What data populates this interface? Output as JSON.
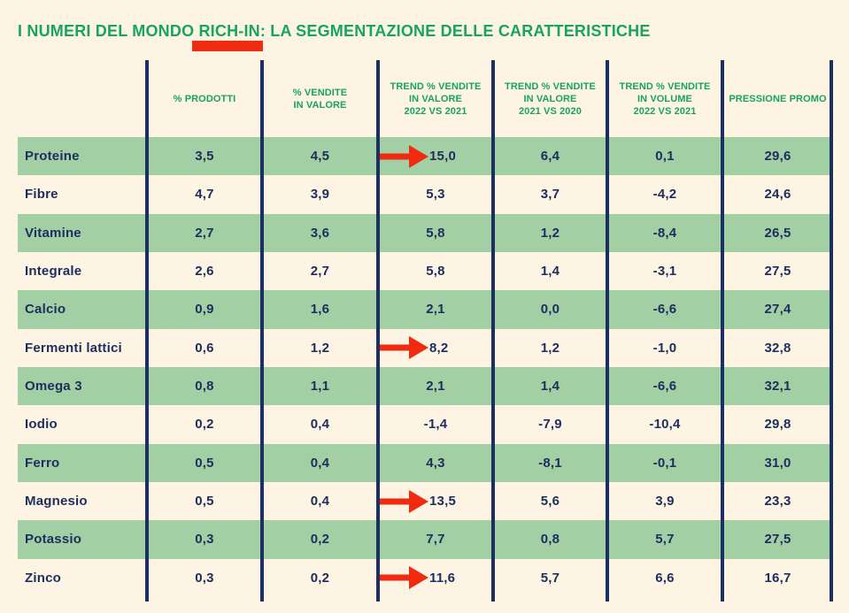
{
  "title": "I NUMERI DEL MONDO RICH-IN: LA SEGMENTAZIONE DELLE CARATTERISTICHE",
  "colors": {
    "background": "#fdf4e3",
    "row_green": "#a2cfa3",
    "navy_text": "#1d2d5f",
    "divider_navy": "#1a2f62",
    "title_green": "#17a45b",
    "accent_red": "#f02b12"
  },
  "icons": {
    "trend_arrow": "right-arrow-icon"
  },
  "table": {
    "header_lines": [
      "% PRODOTTI",
      "% VENDITE\nIN VALORE",
      "TREND % VENDITE\nIN VALORE\n2022 VS 2021",
      "TREND % VENDITE\nIN VALORE\n2021 VS 2020",
      "TREND % VENDITE\nIN VOLUME\n2022 VS 2021",
      "PRESSIONE PROMO"
    ],
    "decimal_separator": ","
  },
  "chart_data": {
    "type": "table",
    "title": "I NUMERI DEL MONDO RICH-IN: LA SEGMENTAZIONE DELLE CARATTERISTICHE",
    "columns": [
      "% PRODOTTI",
      "% VENDITE IN VALORE",
      "TREND % VENDITE IN VALORE 2022 VS 2021",
      "TREND % VENDITE IN VALORE 2021 VS 2020",
      "TREND % VENDITE IN VOLUME 2022 VS 2021",
      "PRESSIONE PROMO"
    ],
    "rows": [
      {
        "label": "Proteine",
        "values": [
          3.5,
          4.5,
          15.0,
          6.4,
          0.1,
          29.6
        ],
        "arrow_col": 2
      },
      {
        "label": "Fibre",
        "values": [
          4.7,
          3.9,
          5.3,
          3.7,
          -4.2,
          24.6
        ],
        "arrow_col": null
      },
      {
        "label": "Vitamine",
        "values": [
          2.7,
          3.6,
          5.8,
          1.2,
          -8.4,
          26.5
        ],
        "arrow_col": null
      },
      {
        "label": "Integrale",
        "values": [
          2.6,
          2.7,
          5.8,
          1.4,
          -3.1,
          27.5
        ],
        "arrow_col": null
      },
      {
        "label": "Calcio",
        "values": [
          0.9,
          1.6,
          2.1,
          0.0,
          -6.6,
          27.4
        ],
        "arrow_col": null
      },
      {
        "label": "Fermenti lattici",
        "values": [
          0.6,
          1.2,
          8.2,
          1.2,
          -1.0,
          32.8
        ],
        "arrow_col": 2
      },
      {
        "label": "Omega 3",
        "values": [
          0.8,
          1.1,
          2.1,
          1.4,
          -6.6,
          32.1
        ],
        "arrow_col": null
      },
      {
        "label": "Iodio",
        "values": [
          0.2,
          0.4,
          -1.4,
          -7.9,
          -10.4,
          29.8
        ],
        "arrow_col": null
      },
      {
        "label": "Ferro",
        "values": [
          0.5,
          0.4,
          4.3,
          -8.1,
          -0.1,
          31.0
        ],
        "arrow_col": null
      },
      {
        "label": "Magnesio",
        "values": [
          0.5,
          0.4,
          13.5,
          5.6,
          3.9,
          23.3
        ],
        "arrow_col": 2
      },
      {
        "label": "Potassio",
        "values": [
          0.3,
          0.2,
          7.7,
          0.8,
          5.7,
          27.5
        ],
        "arrow_col": null
      },
      {
        "label": "Zinco",
        "values": [
          0.3,
          0.2,
          11.6,
          5.7,
          6.6,
          16.7
        ],
        "arrow_col": 2
      }
    ]
  }
}
